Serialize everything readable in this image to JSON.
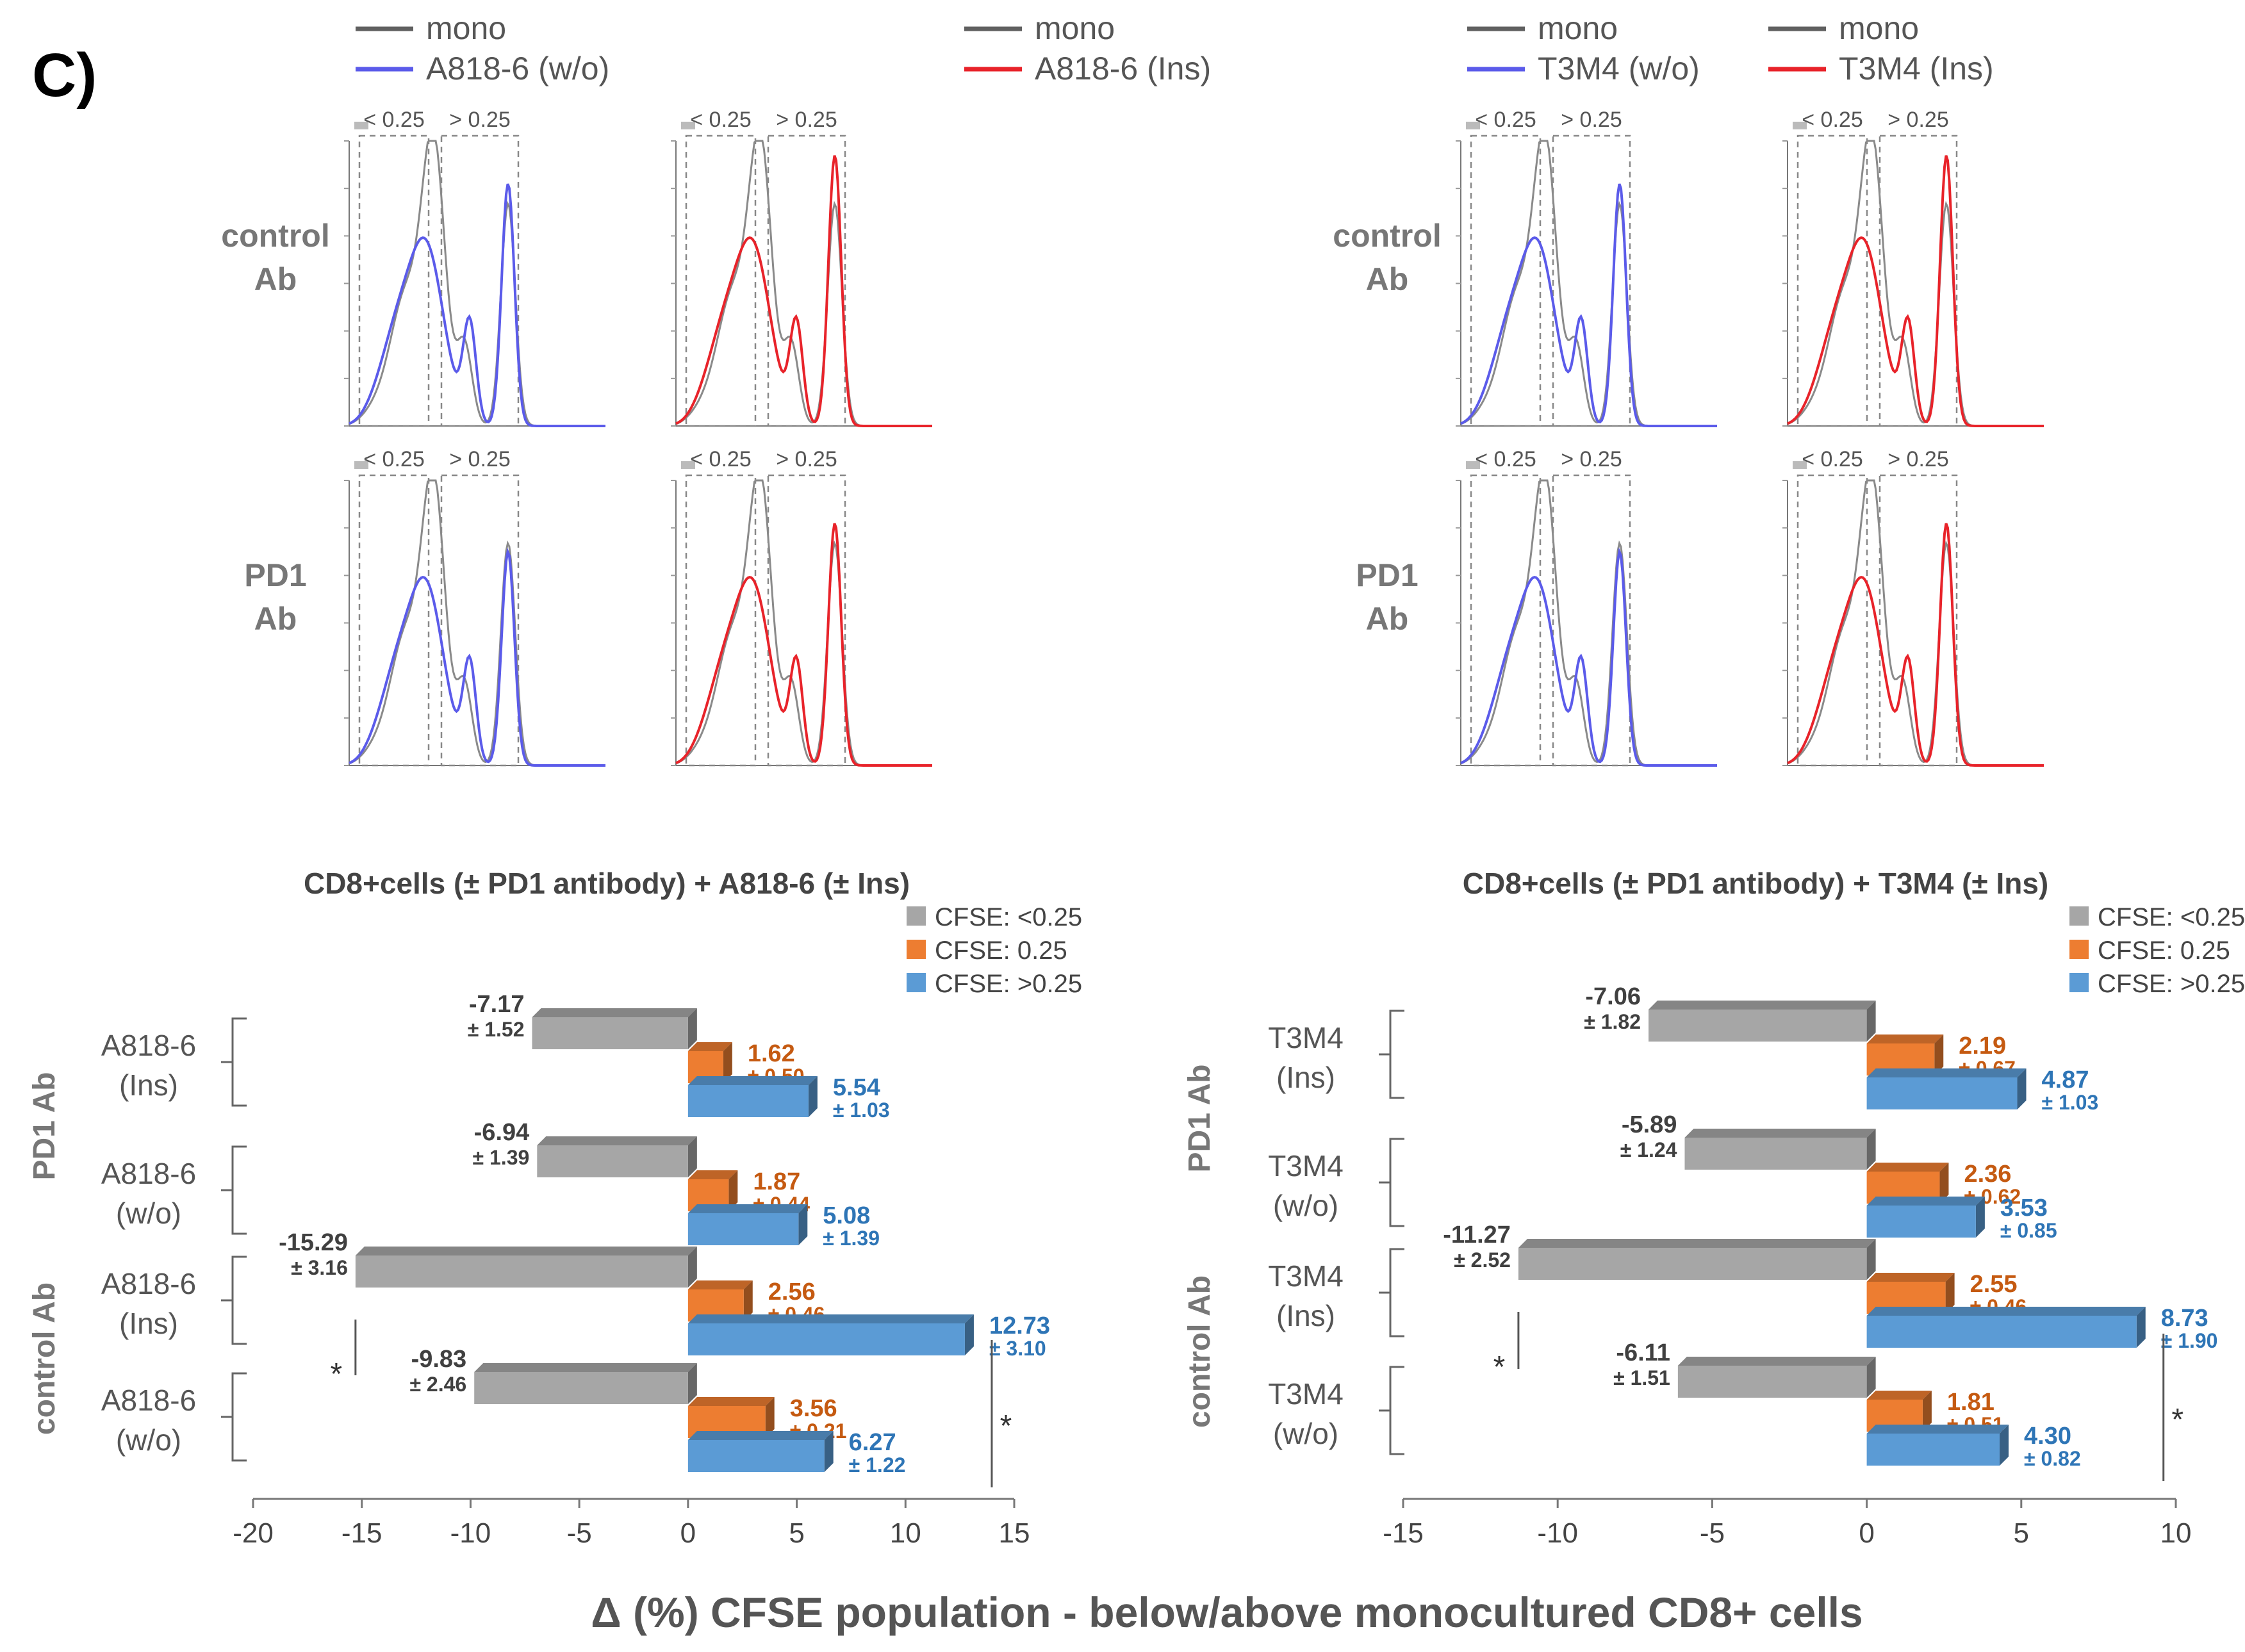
{
  "panel_label": "C)",
  "bottom_xlabel": "Δ (%) CFSE population  - below/above monocultured CD8+ cells",
  "flow_panels": [
    {
      "legend": [
        {
          "label": "mono",
          "color": "#555555"
        },
        {
          "label": "A818-6 (w/o)",
          "color": "#5b5bea"
        },
        {
          "label": "mono",
          "color": "#555555"
        },
        {
          "label": "A818-6 (Ins)",
          "color": "#e8232a"
        }
      ],
      "gate_low": "< 0.25",
      "gate_high": "> 0.25",
      "rows": [
        "control Ab",
        "PD1 Ab"
      ]
    },
    {
      "legend": [
        {
          "label": "mono",
          "color": "#555555"
        },
        {
          "label": "T3M4 (w/o)",
          "color": "#5b5bea"
        },
        {
          "label": "mono",
          "color": "#555555"
        },
        {
          "label": "T3M4 (Ins)",
          "color": "#e8232a"
        }
      ],
      "gate_low": "< 0.25",
      "gate_high": "> 0.25",
      "rows": [
        "control Ab",
        "PD1 Ab"
      ]
    }
  ],
  "chart_data": [
    {
      "type": "bar",
      "orientation": "horizontal",
      "title": "CD8+cells (± PD1 antibody) + A818-6 (± Ins)",
      "xlim": [
        -20,
        15
      ],
      "xticks": [
        -20,
        -15,
        -10,
        -5,
        0,
        5,
        10,
        15
      ],
      "legend": [
        "CFSE: <0.25",
        "CFSE:  0.25",
        "CFSE: >0.25"
      ],
      "colors": [
        "#a6a6a6",
        "#ed7d31",
        "#5b9bd5"
      ],
      "label_colors": [
        "#404040",
        "#c55a11",
        "#2e75b6"
      ],
      "group_labels": [
        "PD1 Ab",
        "control Ab"
      ],
      "categories": [
        "A818-6\n(Ins)",
        "A818-6\n(w/o)",
        "A818-6\n(Ins)",
        "A818-6\n(w/o)"
      ],
      "categories_group": [
        "PD1 Ab",
        "PD1 Ab",
        "control Ab",
        "control Ab"
      ],
      "series": [
        {
          "name": "CFSE: <0.25",
          "values": [
            -7.17,
            -6.94,
            -15.29,
            -9.83
          ],
          "errors": [
            "± 1.52",
            "± 1.39",
            "± 3.16",
            "± 2.46"
          ],
          "labels": [
            "-7.17",
            "-6.94",
            "-15.29",
            "-9.83"
          ]
        },
        {
          "name": "CFSE:  0.25",
          "values": [
            1.62,
            1.87,
            2.56,
            3.56
          ],
          "errors": [
            "± 0.50",
            "± 0.44",
            "± 0.46",
            "± 0.21"
          ],
          "labels": [
            "1.62",
            "1.87",
            "2.56",
            "3.56"
          ]
        },
        {
          "name": "CFSE: >0.25",
          "values": [
            5.54,
            5.08,
            12.73,
            6.27
          ],
          "errors": [
            "± 1.03",
            "± 1.39",
            "± 3.10",
            "± 1.22"
          ],
          "labels": [
            "5.54",
            "5.08",
            "12.73",
            "6.27"
          ]
        }
      ],
      "significance": [
        "*",
        "*"
      ]
    },
    {
      "type": "bar",
      "orientation": "horizontal",
      "title": "CD8+cells (± PD1 antibody) + T3M4 (± Ins)",
      "xlim": [
        -15,
        10
      ],
      "xticks": [
        -15,
        -10,
        -5,
        0,
        5,
        10
      ],
      "legend": [
        "CFSE: <0.25",
        "CFSE:  0.25",
        "CFSE: >0.25"
      ],
      "colors": [
        "#a6a6a6",
        "#ed7d31",
        "#5b9bd5"
      ],
      "label_colors": [
        "#404040",
        "#c55a11",
        "#2e75b6"
      ],
      "group_labels": [
        "PD1 Ab",
        "control Ab"
      ],
      "categories": [
        "T3M4\n(Ins)",
        "T3M4\n(w/o)",
        "T3M4\n(Ins)",
        "T3M4\n(w/o)"
      ],
      "categories_group": [
        "PD1 Ab",
        "PD1 Ab",
        "control Ab",
        "control Ab"
      ],
      "series": [
        {
          "name": "CFSE: <0.25",
          "values": [
            -7.06,
            -5.89,
            -11.27,
            -6.11
          ],
          "errors": [
            "± 1.82",
            "± 1.24",
            "± 2.52",
            "± 1.51"
          ],
          "labels": [
            "-7.06",
            "-5.89",
            "-11.27",
            "-6.11"
          ]
        },
        {
          "name": "CFSE:  0.25",
          "values": [
            2.19,
            2.36,
            2.55,
            1.81
          ],
          "errors": [
            "± 0.67",
            "± 0.62",
            "± 0.46",
            "± 0.51"
          ],
          "labels": [
            "2.19",
            "2.36",
            "2.55",
            "1.81"
          ]
        },
        {
          "name": "CFSE: >0.25",
          "values": [
            4.87,
            3.53,
            8.73,
            4.3
          ],
          "errors": [
            "± 1.03",
            "± 0.85",
            "± 1.90",
            "± 0.82"
          ],
          "labels": [
            "4.87",
            "3.53",
            "8.73",
            "4.30"
          ]
        }
      ],
      "significance": [
        "*",
        "*"
      ]
    }
  ]
}
